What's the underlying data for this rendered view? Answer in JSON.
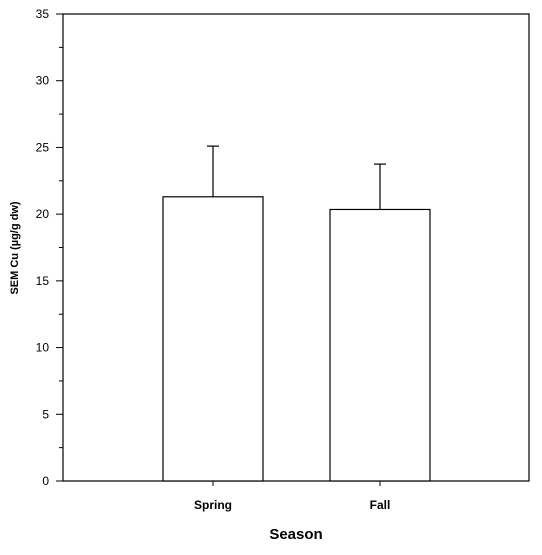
{
  "chart_data": {
    "type": "bar",
    "title": "",
    "xlabel": "Season",
    "ylabel": "SEM Cu (µg/g dw)",
    "categories": [
      "Spring",
      "Fall"
    ],
    "values": [
      21.3,
      20.35
    ],
    "error_bars": [
      3.8,
      3.4
    ],
    "ylim": [
      0,
      35
    ],
    "y_ticks": [
      0,
      5,
      10,
      15,
      20,
      25,
      30,
      35
    ],
    "y_minor_step": 2.5,
    "grid": false,
    "legend": "none",
    "bar_fill": "#ffffff",
    "stroke_color": "#000000"
  }
}
